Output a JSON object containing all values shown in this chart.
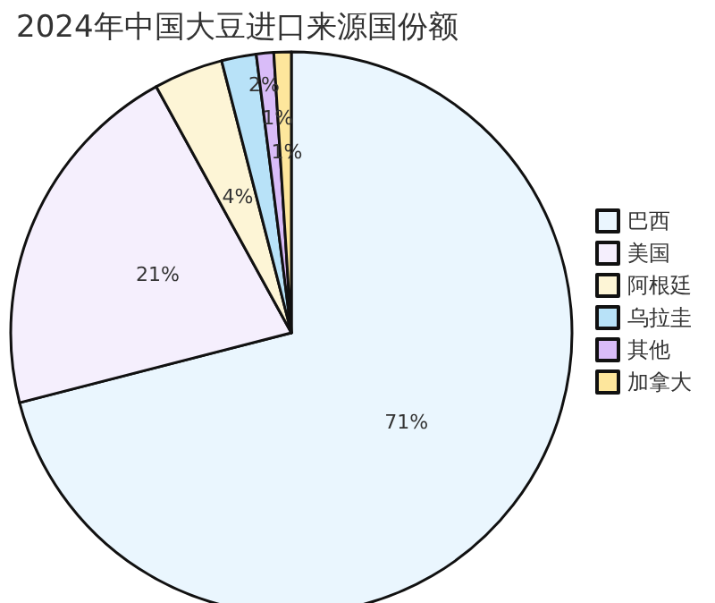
{
  "chart_data": {
    "type": "pie",
    "title": "2024年中国大豆进口来源国份额",
    "categories": [
      "巴西",
      "美国",
      "阿根廷",
      "乌拉圭",
      "其他",
      "加拿大"
    ],
    "values": [
      71,
      21,
      4,
      2,
      1,
      1
    ],
    "colors": [
      "#eaf6fe",
      "#f5effd",
      "#fdf5d6",
      "#b8e2f8",
      "#d9bcf8",
      "#fde69c"
    ],
    "value_labels": [
      "71%",
      "21%",
      "4%",
      "2%",
      "1%",
      "1%"
    ],
    "legend": "right"
  }
}
